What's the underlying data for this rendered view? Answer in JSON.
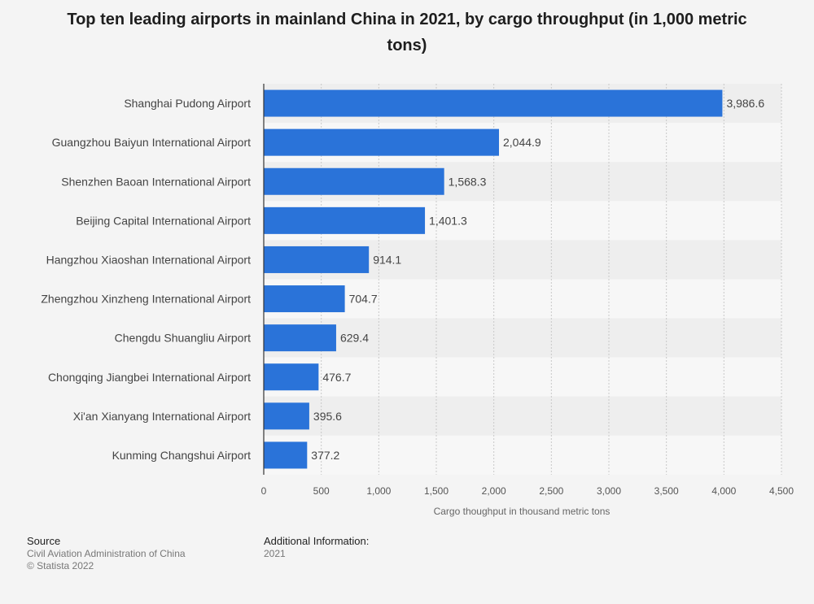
{
  "chart_data": {
    "type": "bar",
    "orientation": "horizontal",
    "title": "Top ten leading airports in mainland China in 2021, by cargo throughput (in 1,000 metric tons)",
    "xlabel": "Cargo thoughput in thousand metric tons",
    "ylabel": "",
    "categories": [
      "Shanghai Pudong Airport",
      "Guangzhou Baiyun International Airport",
      "Shenzhen Baoan International Airport",
      "Beijing Capital International Airport",
      "Hangzhou Xiaoshan International Airport",
      "Zhengzhou Xinzheng International Airport",
      "Chengdu Shuangliu Airport",
      "Chongqing Jiangbei International Airport",
      "Xi'an Xianyang International Airport",
      "Kunming Changshui Airport"
    ],
    "values": [
      3986.6,
      2044.9,
      1568.3,
      1401.3,
      914.1,
      704.7,
      629.4,
      476.7,
      395.6,
      377.2
    ],
    "value_labels": [
      "3,986.6",
      "2,044.9",
      "1,568.3",
      "1,401.3",
      "914.1",
      "704.7",
      "629.4",
      "476.7",
      "395.6",
      "377.2"
    ],
    "xlim": [
      0,
      4500
    ],
    "x_ticks": [
      0,
      500,
      1000,
      1500,
      2000,
      2500,
      3000,
      3500,
      4000,
      4500
    ],
    "x_tick_labels": [
      "0",
      "500",
      "1,000",
      "1,500",
      "2,000",
      "2,500",
      "3,000",
      "3,500",
      "4,000",
      "4,500"
    ],
    "grid": true,
    "bar_color": "#2a73d9",
    "legend": "none"
  },
  "footer": {
    "source_heading": "Source",
    "source_lines": [
      "Civil Aviation Administration of China",
      "© Statista 2022"
    ],
    "info_heading": "Additional Information:",
    "info_lines": [
      "2021"
    ]
  }
}
